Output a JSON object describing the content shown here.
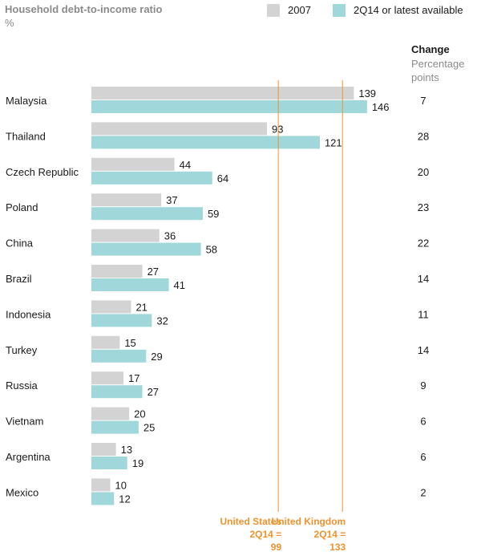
{
  "chart_data": {
    "type": "bar",
    "title": "Household debt-to-income ratio",
    "unit": "%",
    "categories": [
      "Malaysia",
      "Thailand",
      "Czech Republic",
      "Poland",
      "China",
      "Brazil",
      "Indonesia",
      "Turkey",
      "Russia",
      "Vietnam",
      "Argentina",
      "Mexico"
    ],
    "series": [
      {
        "name": "2007",
        "color": "#d3d3d3",
        "values": [
          139,
          93,
          44,
          37,
          36,
          27,
          21,
          15,
          17,
          20,
          13,
          10
        ]
      },
      {
        "name": "2Q14 or latest available",
        "color": "#9fd7da",
        "values": [
          146,
          121,
          64,
          59,
          58,
          41,
          32,
          29,
          27,
          25,
          19,
          12
        ]
      }
    ],
    "change": {
      "title": "Change",
      "subtitle": "Percentage points",
      "values": [
        7,
        28,
        20,
        23,
        22,
        14,
        11,
        14,
        9,
        6,
        6,
        2
      ]
    },
    "reference_lines": [
      {
        "label_lines": [
          "United States",
          "2Q14 =",
          "99"
        ],
        "value": 99,
        "color": "#f0922e"
      },
      {
        "label_lines": [
          "United Kingdom",
          "2Q14 =",
          "133"
        ],
        "value": 133,
        "color": "#f0922e"
      }
    ],
    "xlim": [
      0,
      146
    ]
  }
}
